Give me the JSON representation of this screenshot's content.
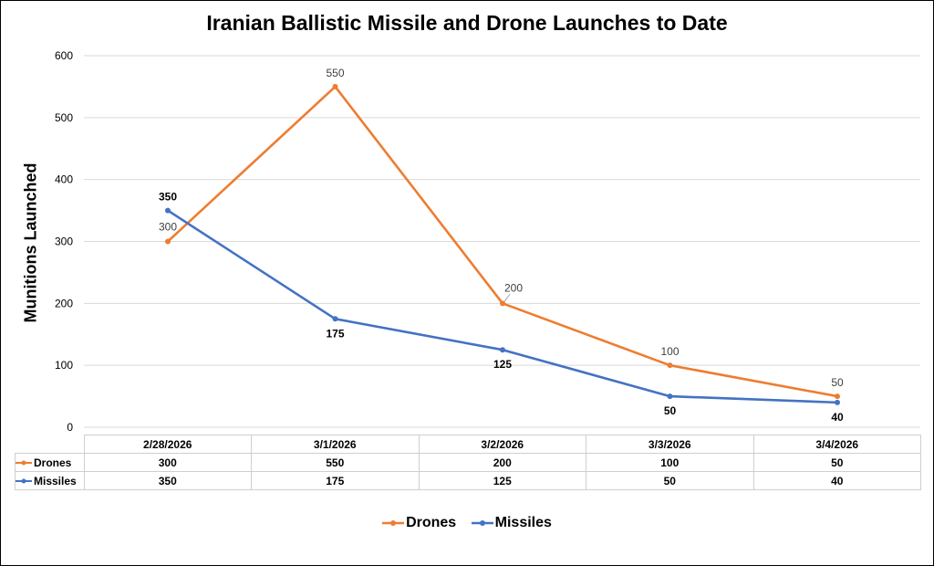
{
  "chart_data": {
    "type": "line",
    "title": "Iranian Ballistic Missile and Drone Launches to Date",
    "xlabel": "",
    "ylabel": "Munitions Launched",
    "categories": [
      "2/28/2026",
      "3/1/2026",
      "3/2/2026",
      "3/3/2026",
      "3/4/2026"
    ],
    "ylim": [
      0,
      600
    ],
    "yticks": [
      "0",
      "100",
      "200",
      "300",
      "400",
      "500",
      "600"
    ],
    "grid": true,
    "legend_position": "bottom",
    "series": [
      {
        "name": "Drones",
        "color": "#ED7D31",
        "label_color": "#404040",
        "values": [
          300,
          550,
          200,
          100,
          50
        ],
        "labels": [
          "300",
          "550",
          "200",
          "100",
          "50"
        ]
      },
      {
        "name": "Missiles",
        "color": "#4472C4",
        "label_color": "#000000",
        "values": [
          350,
          175,
          125,
          50,
          40
        ],
        "labels": [
          "350",
          "175",
          "125",
          "50",
          "40"
        ]
      }
    ]
  }
}
